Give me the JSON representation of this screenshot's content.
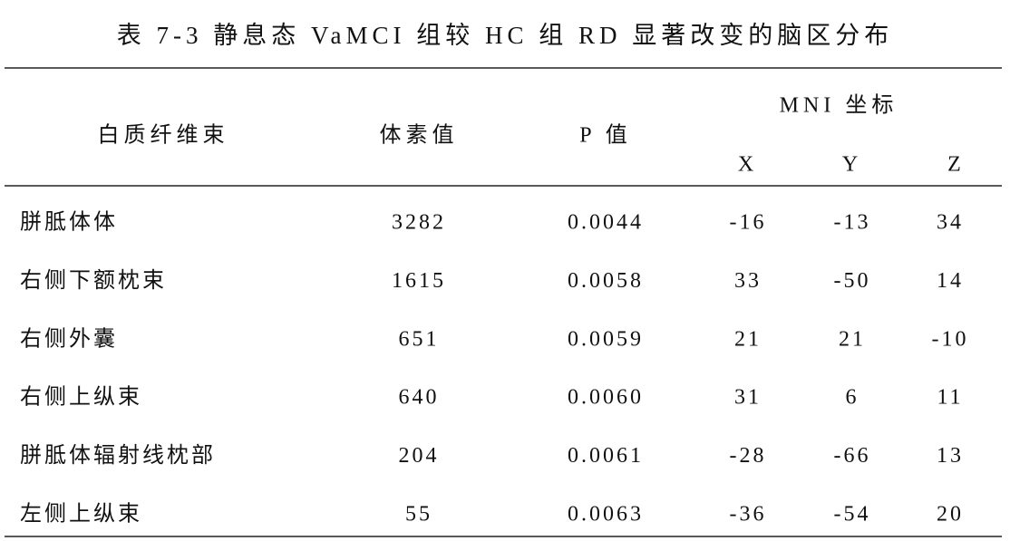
{
  "title": "表 7-3 静息态 VaMCI 组较 HC 组 RD 显著改变的脑区分布",
  "table": {
    "header": [
      "白质纤维束",
      "体素值",
      "P 值"
    ],
    "group_header": "MNI 坐标",
    "sub_header": [
      "X",
      "Y",
      "Z"
    ],
    "rows": [
      [
        "胼胝体体",
        "3282",
        "0.0044",
        "-16",
        "-13",
        "34"
      ],
      [
        "右侧下额枕束",
        "1615",
        "0.0058",
        "33",
        "-50",
        "14"
      ],
      [
        "右侧外囊",
        "651",
        "0.0059",
        "21",
        "21",
        "-10"
      ],
      [
        "右侧上纵束",
        "640",
        "0.0060",
        "31",
        "6",
        "11"
      ],
      [
        "胼胝体辐射线枕部",
        "204",
        "0.0061",
        "-28",
        "-66",
        "13"
      ],
      [
        "左侧上纵束",
        "55",
        "0.0063",
        "-36",
        "-54",
        "20"
      ]
    ]
  }
}
